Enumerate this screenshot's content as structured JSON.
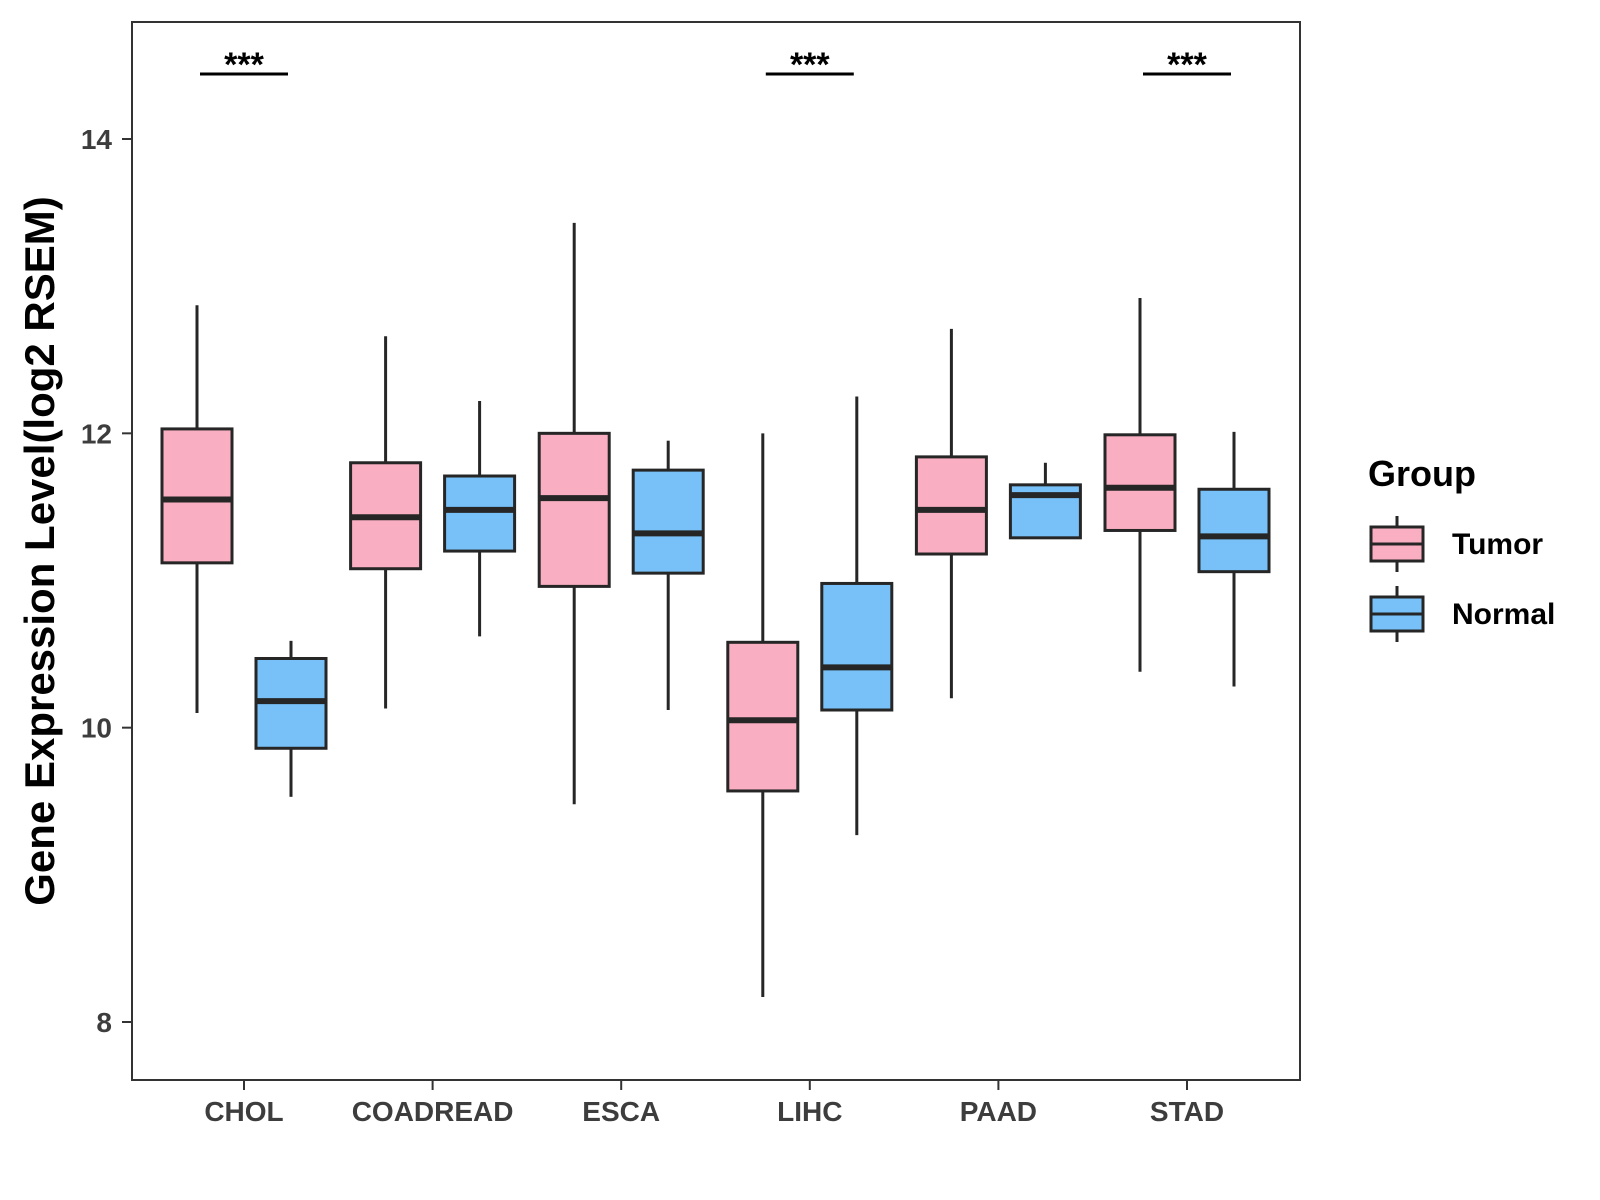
{
  "chart_data": {
    "type": "boxplot",
    "title": "",
    "xlabel": "",
    "ylabel": "Gene Expression Level(log2 RSEM)",
    "ylim": [
      7.6,
      14.8
    ],
    "yticks": [
      8,
      10,
      12,
      14
    ],
    "categories": [
      "CHOL",
      "COADREAD",
      "ESCA",
      "LIHC",
      "PAAD",
      "STAD"
    ],
    "series": [
      {
        "name": "Tumor",
        "color": "#f9afc1",
        "boxes": [
          {
            "min": 10.1,
            "q1": 11.12,
            "median": 11.55,
            "q3": 12.03,
            "max": 12.87
          },
          {
            "min": 10.13,
            "q1": 11.08,
            "median": 11.43,
            "q3": 11.8,
            "max": 12.66
          },
          {
            "min": 9.48,
            "q1": 10.96,
            "median": 11.56,
            "q3": 12.0,
            "max": 13.43
          },
          {
            "min": 8.17,
            "q1": 9.57,
            "median": 10.05,
            "q3": 10.58,
            "max": 12.0
          },
          {
            "min": 10.2,
            "q1": 11.18,
            "median": 11.48,
            "q3": 11.84,
            "max": 12.71
          },
          {
            "min": 10.38,
            "q1": 11.34,
            "median": 11.63,
            "q3": 11.99,
            "max": 12.92
          }
        ]
      },
      {
        "name": "Normal",
        "color": "#77c1f8",
        "boxes": [
          {
            "min": 9.53,
            "q1": 9.86,
            "median": 10.18,
            "q3": 10.47,
            "max": 10.59
          },
          {
            "min": 10.62,
            "q1": 11.2,
            "median": 11.48,
            "q3": 11.71,
            "max": 12.22
          },
          {
            "min": 10.12,
            "q1": 11.05,
            "median": 11.32,
            "q3": 11.75,
            "max": 11.95
          },
          {
            "min": 9.27,
            "q1": 10.12,
            "median": 10.41,
            "q3": 10.98,
            "max": 12.25
          },
          {
            "min": 11.29,
            "q1": 11.29,
            "median": 11.58,
            "q3": 11.65,
            "max": 11.8
          },
          {
            "min": 10.28,
            "q1": 11.06,
            "median": 11.3,
            "q3": 11.62,
            "max": 12.01
          }
        ]
      }
    ],
    "significance": [
      {
        "category": "CHOL",
        "label": "***"
      },
      {
        "category": "LIHC",
        "label": "***"
      },
      {
        "category": "STAD",
        "label": "***"
      }
    ],
    "legend": {
      "title": "Group",
      "position": "right",
      "items": [
        "Tumor",
        "Normal"
      ]
    }
  }
}
